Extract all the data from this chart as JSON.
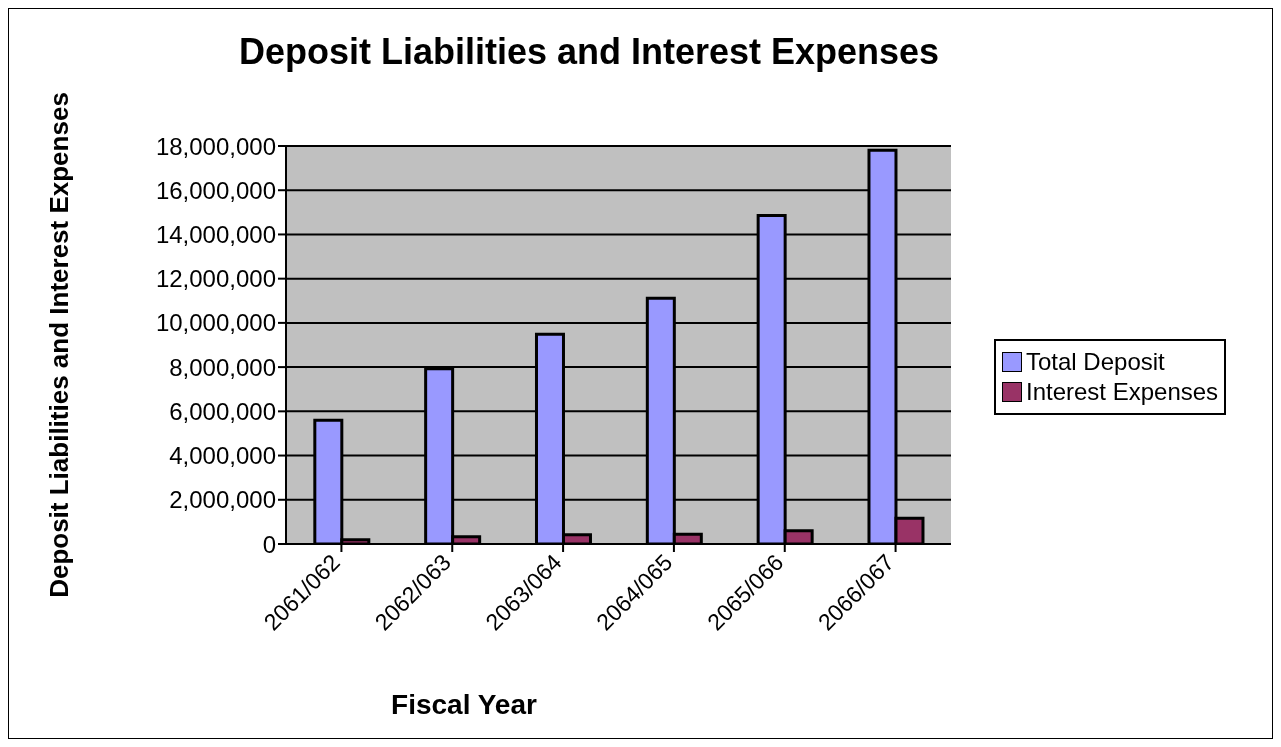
{
  "chart_data": {
    "type": "bar",
    "title": "Deposit Liabilities and Interest Expenses",
    "xlabel": "Fiscal Year",
    "ylabel": "Deposit Liabilities and Interest Expenses",
    "categories": [
      "2061/062",
      "2062/063",
      "2063/064",
      "2064/065",
      "2065/066",
      "2066/067"
    ],
    "series": [
      {
        "name": "Total Deposit",
        "color": "#9999ff",
        "values": [
          5600000,
          7930000,
          9490000,
          11110000,
          14860000,
          17810000
        ]
      },
      {
        "name": "Interest Expenses",
        "color": "#993366",
        "values": [
          190000,
          330000,
          420000,
          440000,
          600000,
          1170000
        ]
      }
    ],
    "ylim": [
      0,
      18000000
    ],
    "yticks": [
      0,
      {
        "value": 2000000,
        "label": "2,000,000"
      },
      {
        "value": 4000000,
        "label": "4,000,000"
      },
      {
        "value": 6000000,
        "label": "6,000,000"
      },
      {
        "value": 8000000,
        "label": "8,000,000"
      },
      {
        "value": 10000000,
        "label": "10,000,000"
      },
      {
        "value": 12000000,
        "label": "12,000,000"
      },
      {
        "value": 14000000,
        "label": "14,000,000"
      },
      {
        "value": 16000000,
        "label": "16,000,000"
      },
      {
        "value": 18000000,
        "label": "18,000,000"
      }
    ],
    "grid": "y",
    "legend": "right"
  }
}
